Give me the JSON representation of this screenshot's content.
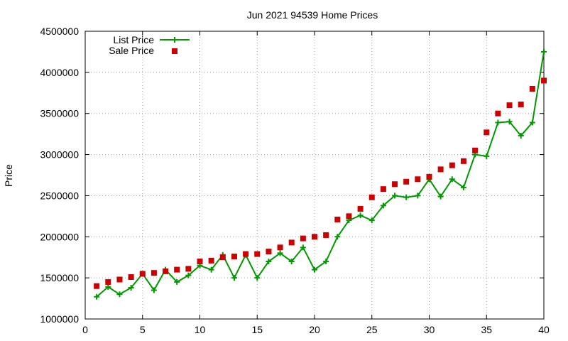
{
  "chart_data": {
    "type": "line",
    "title": "Jun 2021 94539 Home Prices",
    "xlabel": "",
    "ylabel": "Price",
    "xlim": [
      0,
      40
    ],
    "ylim": [
      1000000,
      4500000
    ],
    "xticks": [
      0,
      5,
      10,
      15,
      20,
      25,
      30,
      35,
      40
    ],
    "yticks": [
      1000000,
      1500000,
      2000000,
      2500000,
      3000000,
      3500000,
      4000000,
      4500000
    ],
    "grid": true,
    "legend_position": "top-left",
    "colors": {
      "list": "#009900",
      "sale": "#cc0000"
    },
    "x": [
      1,
      2,
      3,
      4,
      5,
      6,
      7,
      8,
      9,
      10,
      11,
      12,
      13,
      14,
      15,
      16,
      17,
      18,
      19,
      20,
      21,
      22,
      23,
      24,
      25,
      26,
      27,
      28,
      29,
      30,
      31,
      32,
      33,
      34,
      35,
      36,
      37,
      38,
      39,
      40
    ],
    "series": [
      {
        "name": "List Price",
        "style": "line-plus",
        "values": [
          1270000,
          1390000,
          1300000,
          1380000,
          1550000,
          1350000,
          1600000,
          1450000,
          1530000,
          1650000,
          1600000,
          1780000,
          1500000,
          1780000,
          1500000,
          1700000,
          1800000,
          1700000,
          1870000,
          1600000,
          1700000,
          2000000,
          2200000,
          2260000,
          2200000,
          2380000,
          2500000,
          2480000,
          2500000,
          2700000,
          2490000,
          2700000,
          2600000,
          3000000,
          2980000,
          3390000,
          3400000,
          3230000,
          3390000,
          4250000
        ]
      },
      {
        "name": "Sale Price",
        "style": "square",
        "values": [
          1400000,
          1450000,
          1480000,
          1510000,
          1550000,
          1560000,
          1580000,
          1600000,
          1610000,
          1700000,
          1710000,
          1750000,
          1760000,
          1790000,
          1790000,
          1820000,
          1870000,
          1930000,
          1980000,
          2000000,
          2020000,
          2210000,
          2250000,
          2340000,
          2480000,
          2580000,
          2640000,
          2670000,
          2700000,
          2730000,
          2820000,
          2870000,
          2920000,
          3050000,
          3270000,
          3500000,
          3600000,
          3610000,
          3800000,
          3900000
        ]
      }
    ]
  }
}
